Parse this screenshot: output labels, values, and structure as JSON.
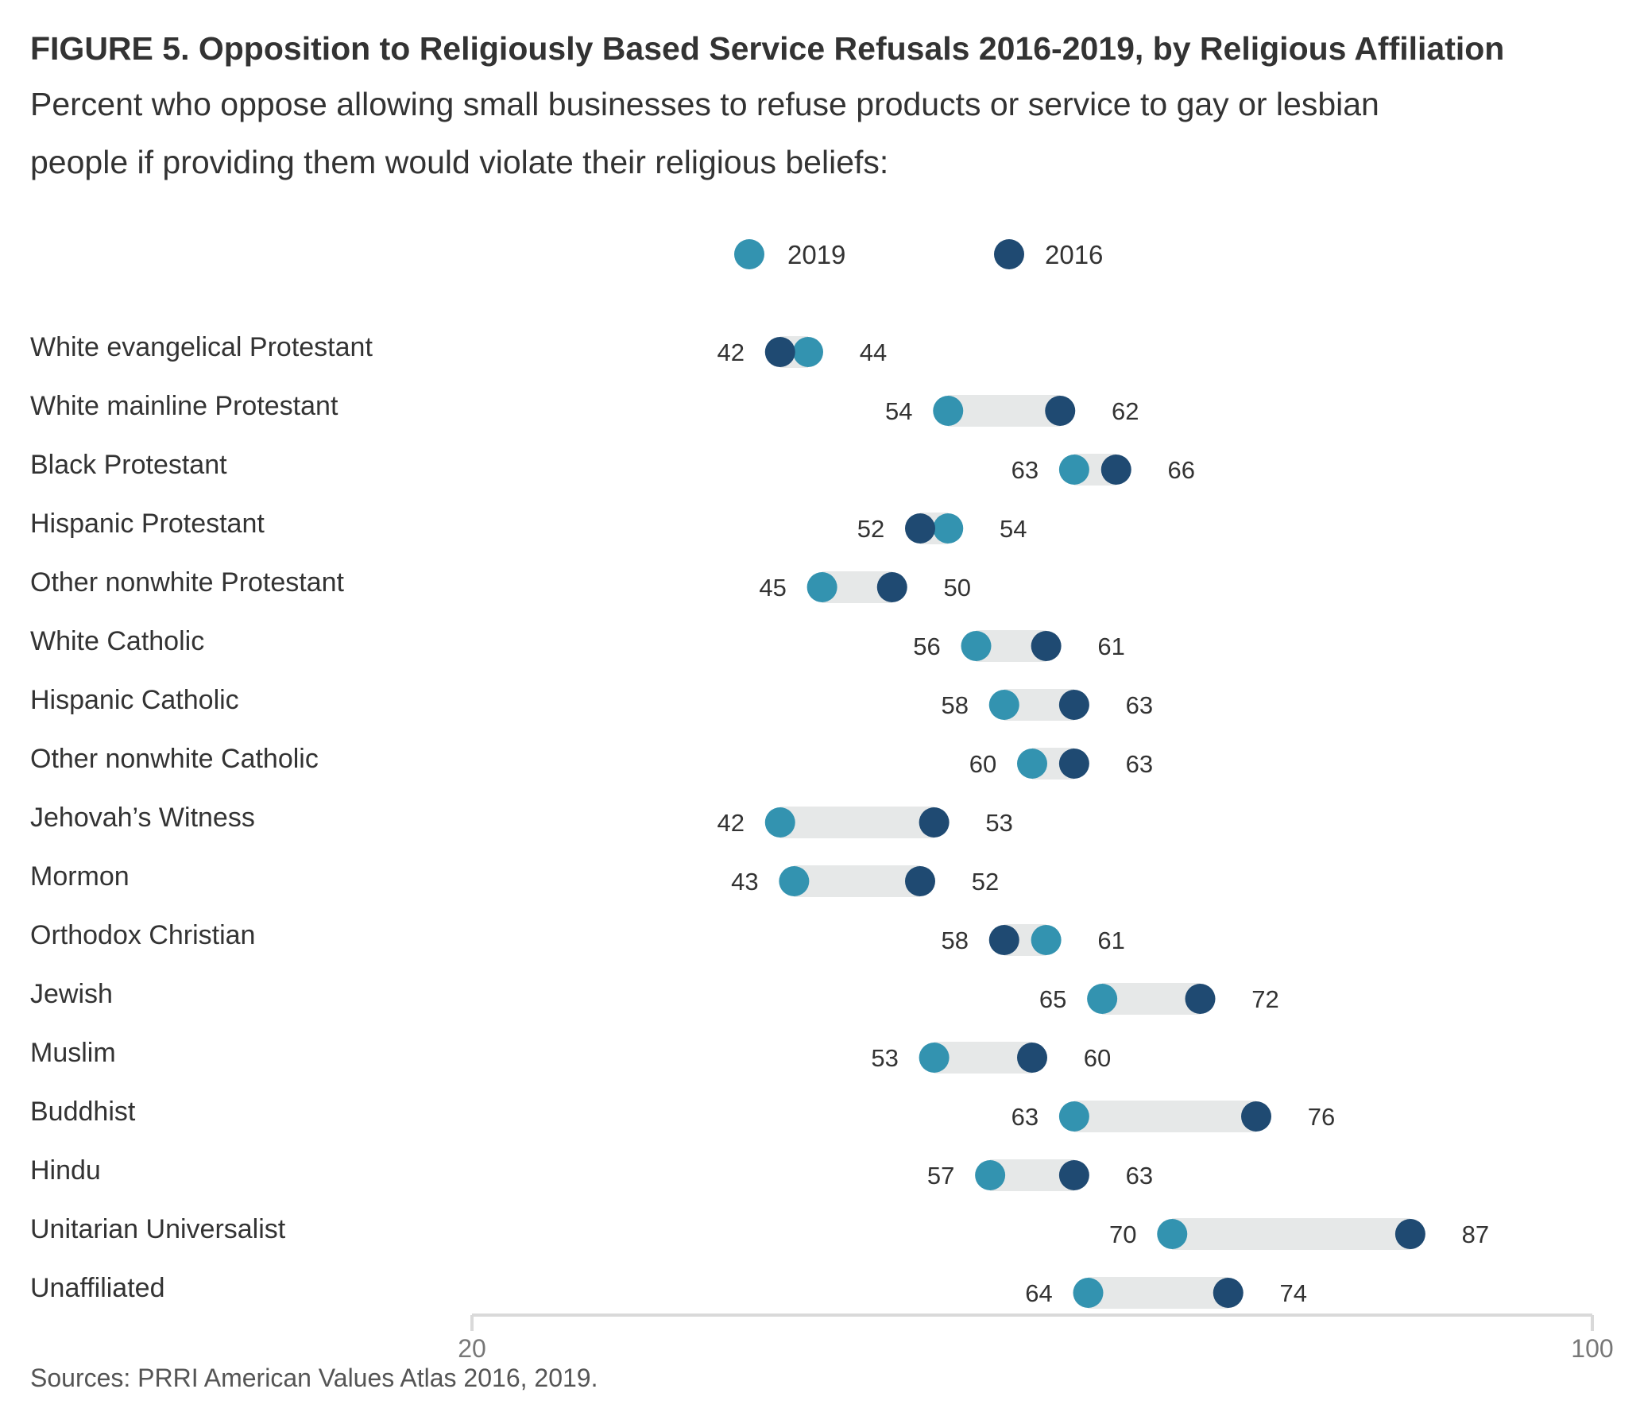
{
  "colors": {
    "y2019": "#3393b0",
    "y2016": "#1f4a72",
    "connector": "#e6e8e8",
    "axis": "#d9d9d9"
  },
  "chart_data": {
    "type": "dumbbell",
    "title": "FIGURE 5. Opposition to Religiously Based Service Refusals 2016-2019, by Religious Affiliation",
    "subtitle_lines": [
      "Percent who oppose allowing small businesses to refuse products or service to gay or lesbian",
      "people if providing them would violate their religious beliefs:"
    ],
    "legend": [
      {
        "key": "y2019",
        "label": "2019"
      },
      {
        "key": "y2016",
        "label": "2016"
      }
    ],
    "legend_placement": "top-center",
    "xlim": [
      20,
      100
    ],
    "xticks": [
      "20",
      "100"
    ],
    "categories": [
      "White evangelical Protestant",
      "White mainline Protestant",
      "Black Protestant",
      "Hispanic Protestant",
      "Other nonwhite Protestant",
      "White Catholic",
      "Hispanic Catholic",
      "Other nonwhite Catholic",
      "Jehovah’s Witness",
      "Mormon",
      "Orthodox Christian",
      "Jewish",
      "Muslim",
      "Buddhist",
      "Hindu",
      "Unitarian Universalist",
      "Unaffiliated"
    ],
    "series": [
      {
        "name": "2019",
        "values": [
          44,
          54,
          63,
          54,
          45,
          56,
          58,
          60,
          42,
          43,
          61,
          65,
          53,
          63,
          57,
          70,
          64
        ]
      },
      {
        "name": "2016",
        "values": [
          42,
          62,
          66,
          52,
          50,
          61,
          63,
          63,
          53,
          52,
          58,
          72,
          60,
          76,
          63,
          87,
          74
        ]
      }
    ],
    "source": "Sources: PRRI American Values Atlas 2016, 2019."
  }
}
